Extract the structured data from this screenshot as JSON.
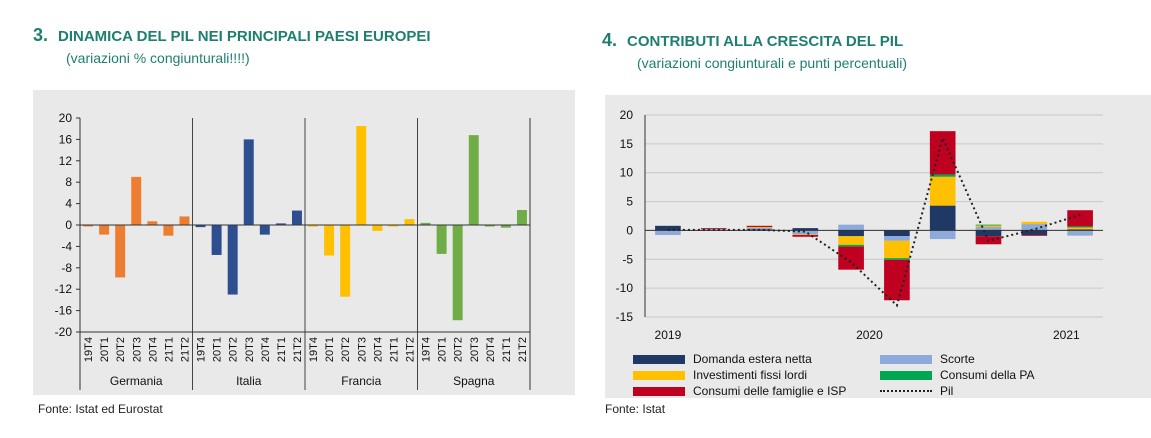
{
  "left": {
    "number": "3.",
    "title": "DINAMICA DEL PIL NEI PRINCIPALI PAESI EUROPEI",
    "subtitle": "(variazioni % congiunturali!!!!)",
    "source": "Fonte: Istat ed Eurostat"
  },
  "right": {
    "number": "4.",
    "title": "CONTRIBUTI ALLA CRESCITA DEL PIL",
    "subtitle": "(variazioni congiunturali e punti percentuali)",
    "source": "Fonte: Istat"
  },
  "chart_data": [
    {
      "type": "bar",
      "title": "DINAMICA DEL PIL NEI PRINCIPALI PAESI EUROPEI",
      "ylim": [
        -20,
        20
      ],
      "yticks": [
        20,
        16,
        12,
        8,
        4,
        0,
        -4,
        -8,
        -12,
        -16,
        -20
      ],
      "grid": false,
      "categories": [
        "19T4",
        "20T1",
        "20T2",
        "20T3",
        "20T4",
        "21T1",
        "21T2"
      ],
      "groups": [
        {
          "name": "Germania",
          "color": "#ed7d31",
          "values": [
            0.0,
            -1.8,
            -9.8,
            9.0,
            0.7,
            -2.0,
            1.6
          ]
        },
        {
          "name": "Italia",
          "color": "#2e4f8f",
          "values": [
            -0.4,
            -5.6,
            -13.0,
            16.0,
            -1.8,
            0.3,
            2.7
          ]
        },
        {
          "name": "Francia",
          "color": "#ffc000",
          "values": [
            -0.3,
            -5.7,
            -13.4,
            18.5,
            -1.1,
            0.0,
            1.1
          ]
        },
        {
          "name": "Spagna",
          "color": "#70ad47",
          "values": [
            0.4,
            -5.4,
            -17.8,
            16.8,
            0.0,
            -0.5,
            2.8
          ]
        }
      ]
    },
    {
      "type": "bar",
      "stacked": true,
      "title": "CONTRIBUTI ALLA CRESCITA DEL PIL",
      "ylim": [
        -15,
        20
      ],
      "yticks": [
        20,
        15,
        10,
        5,
        0,
        -5,
        -10,
        -15
      ],
      "grid": true,
      "x_labels": [
        "2019",
        "2020",
        "2021"
      ],
      "quarters": [
        "2019Q1",
        "2019Q2",
        "2019Q3",
        "2019Q4",
        "2020Q1",
        "2020Q2",
        "2020Q3",
        "2020Q4",
        "2021Q1",
        "2021Q2"
      ],
      "series": [
        {
          "name": "Domanda estera netta",
          "color": "#1f3864",
          "values": [
            0.8,
            0.0,
            0.2,
            0.4,
            -1.0,
            -1.0,
            4.3,
            -1.0,
            -0.8,
            0.2
          ]
        },
        {
          "name": "Scorte",
          "color": "#8ea9db",
          "values": [
            -0.8,
            0.3,
            0.3,
            -0.7,
            1.0,
            -0.8,
            -1.5,
            0.6,
            1.1,
            -0.9
          ]
        },
        {
          "name": "Investimenti fissi lordi",
          "color": "#ffc000",
          "values": [
            0.0,
            0.0,
            0.1,
            -0.1,
            -1.5,
            -3.0,
            5.0,
            0.3,
            0.4,
            0.3
          ]
        },
        {
          "name": "Consumi della PA",
          "color": "#00a651",
          "values": [
            0.0,
            0.0,
            0.0,
            0.0,
            -0.3,
            -0.3,
            0.4,
            0.1,
            0.0,
            0.2
          ]
        },
        {
          "name": "Consumi delle famiglie e ISP",
          "color": "#c00020",
          "values": [
            0.0,
            0.1,
            0.2,
            -0.3,
            -4.0,
            -7.0,
            7.5,
            -1.4,
            -0.1,
            2.8
          ]
        }
      ],
      "line": {
        "name": "Pil",
        "color": "#222222",
        "values": [
          0.1,
          0.1,
          0.1,
          -0.2,
          -5.5,
          -13.0,
          16.0,
          -1.8,
          0.2,
          2.7
        ]
      }
    }
  ]
}
